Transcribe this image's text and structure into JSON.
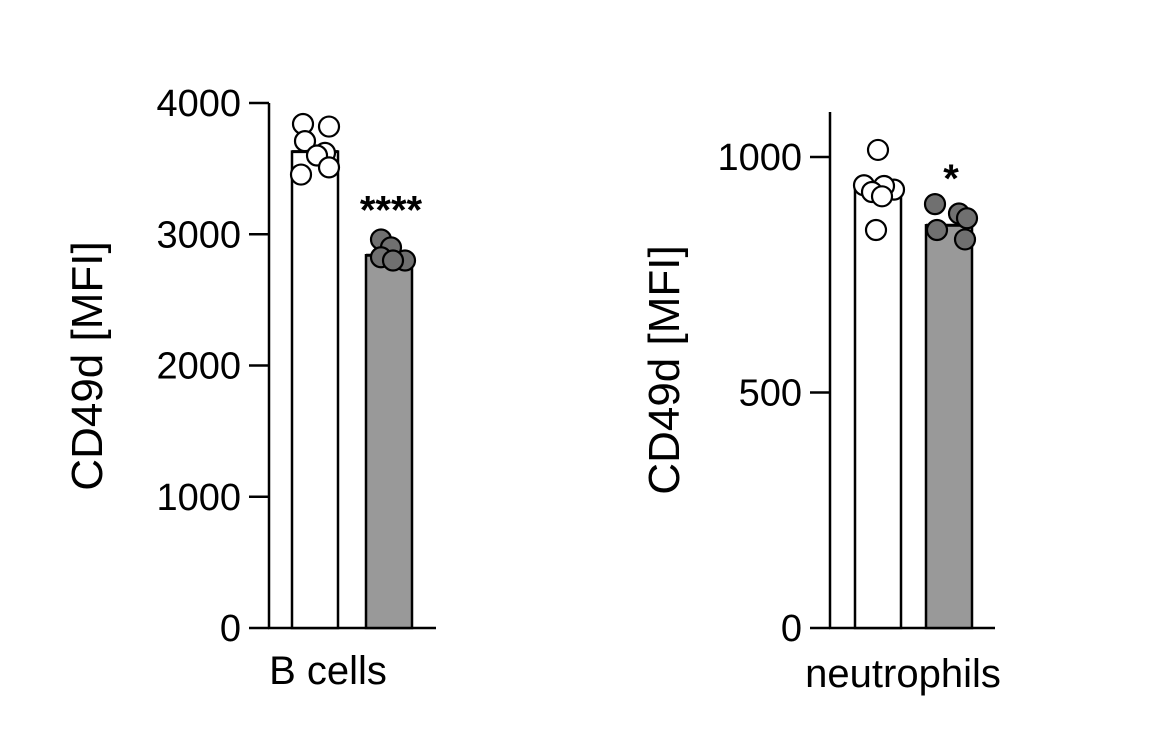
{
  "chart_data": [
    {
      "type": "bar",
      "xlabel": "B cells",
      "ylabel": "CD49d [MFI]",
      "ylim": [
        0,
        4000
      ],
      "yticks": [
        "0",
        "1000",
        "2000",
        "3000",
        "4000"
      ],
      "grid": false,
      "legend": "none",
      "series": [
        {
          "values": [
            3630
          ],
          "fill": "#ffffff",
          "points": [
            3840,
            3790,
            3740,
            3620,
            3600,
            3540,
            3470
          ]
        },
        {
          "values": [
            2840
          ],
          "fill": "#999999",
          "points": [
            2960,
            2900,
            2840,
            2800,
            2800
          ]
        }
      ],
      "annotations": [
        "****"
      ]
    },
    {
      "type": "bar",
      "xlabel": "neutrophils",
      "ylabel": "CD49d [MFI]",
      "ylim": [
        0,
        1100
      ],
      "yticks": [
        "0",
        "500",
        "1000"
      ],
      "grid": false,
      "legend": "none",
      "series": [
        {
          "values": [
            930
          ],
          "fill": "#ffffff",
          "points": [
            1015,
            940,
            935,
            930,
            930,
            925,
            845
          ]
        },
        {
          "values": [
            855
          ],
          "fill": "#999999",
          "points": [
            900,
            880,
            870,
            845,
            825
          ]
        }
      ],
      "annotations": [
        "*"
      ]
    }
  ]
}
